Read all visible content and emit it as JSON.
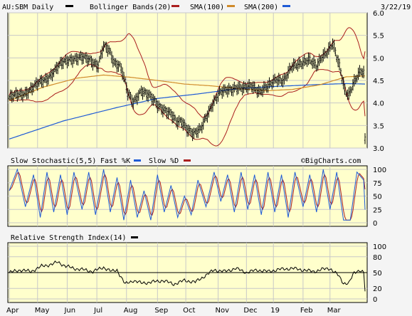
{
  "chart_data": [
    {
      "type": "line",
      "panel": "price",
      "ticker_label": "AU:SBM Daily",
      "date_label": "3/22/19",
      "legend": [
        {
          "label": "Bollinger Bands(20)",
          "color": "#000000"
        },
        {
          "label": "SMA(100)",
          "color": "#aa1e1e"
        },
        {
          "label": "SMA(200)",
          "color": "#d08a2a"
        },
        {
          "label": "",
          "color": "#1e5ad6"
        }
      ],
      "legend_last_label": "SMA(200)",
      "ylim": [
        3.0,
        6.0
      ],
      "yticks": [
        "6.0",
        "5.5",
        "5.0",
        "4.5",
        "4.0",
        "3.5",
        "3.0"
      ],
      "ytick_values": [
        6.0,
        5.5,
        5.0,
        4.5,
        4.0,
        3.5,
        3.0
      ],
      "x_months": [
        "Apr",
        "May",
        "Jun",
        "Jul",
        "Aug",
        "Sep",
        "Oct",
        "Nov",
        "Dec",
        "19",
        "Feb",
        "Mar"
      ],
      "close_series": {
        "name": "Price",
        "anchors": [
          [
            0,
            4.12
          ],
          [
            10,
            4.2
          ],
          [
            18,
            4.35
          ],
          [
            28,
            4.55
          ],
          [
            38,
            4.85
          ],
          [
            45,
            4.98
          ],
          [
            52,
            5.0
          ],
          [
            60,
            4.95
          ],
          [
            66,
            4.85
          ],
          [
            70,
            5.25
          ],
          [
            74,
            5.15
          ],
          [
            78,
            4.9
          ],
          [
            82,
            4.85
          ],
          [
            84,
            4.7
          ],
          [
            88,
            4.2
          ],
          [
            92,
            4.0
          ],
          [
            98,
            4.3
          ],
          [
            104,
            4.15
          ],
          [
            110,
            3.95
          ],
          [
            116,
            3.85
          ],
          [
            120,
            3.75
          ],
          [
            124,
            3.55
          ],
          [
            128,
            3.6
          ],
          [
            132,
            3.45
          ],
          [
            137,
            3.3
          ],
          [
            142,
            3.4
          ],
          [
            146,
            3.7
          ],
          [
            150,
            3.95
          ],
          [
            156,
            4.2
          ],
          [
            162,
            4.3
          ],
          [
            168,
            4.35
          ],
          [
            174,
            4.3
          ],
          [
            180,
            4.4
          ],
          [
            186,
            4.25
          ],
          [
            192,
            4.35
          ],
          [
            198,
            4.55
          ],
          [
            204,
            4.5
          ],
          [
            210,
            4.8
          ],
          [
            216,
            4.9
          ],
          [
            222,
            4.95
          ],
          [
            228,
            4.8
          ],
          [
            232,
            5.05
          ],
          [
            236,
            5.15
          ],
          [
            240,
            5.3
          ],
          [
            242,
            5.1
          ],
          [
            246,
            4.7
          ],
          [
            249,
            4.3
          ],
          [
            252,
            4.2
          ],
          [
            255,
            4.4
          ],
          [
            258,
            4.55
          ],
          [
            261,
            4.7
          ],
          [
            263,
            4.65
          ],
          [
            264,
            3.2
          ]
        ]
      },
      "sma100": {
        "anchors": [
          [
            0,
            4.05
          ],
          [
            25,
            4.35
          ],
          [
            50,
            4.55
          ],
          [
            70,
            4.62
          ],
          [
            90,
            4.57
          ],
          [
            110,
            4.5
          ],
          [
            130,
            4.42
          ],
          [
            150,
            4.38
          ],
          [
            170,
            4.32
          ],
          [
            190,
            4.27
          ],
          [
            210,
            4.3
          ],
          [
            230,
            4.4
          ],
          [
            250,
            4.58
          ],
          [
            264,
            4.6
          ]
        ]
      },
      "sma200": {
        "anchors": [
          [
            0,
            3.2
          ],
          [
            40,
            3.6
          ],
          [
            80,
            3.9
          ],
          [
            110,
            4.1
          ],
          [
            140,
            4.2
          ],
          [
            170,
            4.32
          ],
          [
            200,
            4.37
          ],
          [
            230,
            4.41
          ],
          [
            250,
            4.43
          ],
          [
            264,
            4.42
          ]
        ]
      }
    },
    {
      "type": "line",
      "panel": "stochastic",
      "title": "Slow Stochastic(5,5)",
      "watermark": "©BigCharts.com",
      "legend": [
        {
          "label": "Fast %K",
          "color": "#1e5ad6"
        },
        {
          "label": "Slow %D",
          "color": "#aa1e1e"
        }
      ],
      "ylim": [
        0,
        100
      ],
      "yticks": [
        "100",
        "75",
        "50",
        "25",
        "0"
      ],
      "ytick_values": [
        100,
        75,
        50,
        25,
        0
      ],
      "fast_k_peaks": [
        [
          0,
          60
        ],
        [
          6,
          100
        ],
        [
          12,
          30
        ],
        [
          18,
          90
        ],
        [
          23,
          10
        ],
        [
          28,
          95
        ],
        [
          33,
          20
        ],
        [
          38,
          90
        ],
        [
          43,
          15
        ],
        [
          48,
          95
        ],
        [
          54,
          25
        ],
        [
          59,
          95
        ],
        [
          64,
          15
        ],
        [
          70,
          100
        ],
        [
          75,
          20
        ],
        [
          80,
          85
        ],
        [
          85,
          5
        ],
        [
          90,
          80
        ],
        [
          95,
          10
        ],
        [
          100,
          60
        ],
        [
          105,
          5
        ],
        [
          110,
          90
        ],
        [
          115,
          20
        ],
        [
          120,
          70
        ],
        [
          125,
          10
        ],
        [
          130,
          50
        ],
        [
          135,
          15
        ],
        [
          140,
          80
        ],
        [
          146,
          30
        ],
        [
          152,
          95
        ],
        [
          157,
          40
        ],
        [
          162,
          90
        ],
        [
          167,
          20
        ],
        [
          172,
          95
        ],
        [
          177,
          25
        ],
        [
          182,
          90
        ],
        [
          187,
          15
        ],
        [
          192,
          95
        ],
        [
          197,
          20
        ],
        [
          202,
          90
        ],
        [
          207,
          10
        ],
        [
          212,
          95
        ],
        [
          218,
          30
        ],
        [
          223,
          90
        ],
        [
          228,
          20
        ],
        [
          233,
          100
        ],
        [
          238,
          25
        ],
        [
          243,
          95
        ],
        [
          248,
          5
        ],
        [
          253,
          5
        ],
        [
          258,
          95
        ],
        [
          263,
          80
        ],
        [
          264,
          25
        ]
      ]
    },
    {
      "type": "line",
      "panel": "rsi",
      "title": "Relative Strength Index(14)",
      "legend_color": "#000000",
      "ylim": [
        0,
        100
      ],
      "yticks": [
        "100",
        "80",
        "50",
        "20",
        "0"
      ],
      "ytick_values": [
        100,
        80,
        50,
        20,
        0
      ],
      "reference_line": 50,
      "anchors": [
        [
          0,
          50
        ],
        [
          8,
          55
        ],
        [
          16,
          52
        ],
        [
          24,
          62
        ],
        [
          32,
          66
        ],
        [
          36,
          70
        ],
        [
          42,
          62
        ],
        [
          48,
          58
        ],
        [
          56,
          55
        ],
        [
          62,
          52
        ],
        [
          70,
          60
        ],
        [
          76,
          52
        ],
        [
          80,
          55
        ],
        [
          86,
          28
        ],
        [
          92,
          35
        ],
        [
          98,
          30
        ],
        [
          106,
          32
        ],
        [
          114,
          35
        ],
        [
          122,
          28
        ],
        [
          130,
          35
        ],
        [
          138,
          32
        ],
        [
          146,
          45
        ],
        [
          152,
          55
        ],
        [
          160,
          52
        ],
        [
          168,
          58
        ],
        [
          176,
          50
        ],
        [
          184,
          55
        ],
        [
          192,
          52
        ],
        [
          200,
          56
        ],
        [
          210,
          58
        ],
        [
          218,
          55
        ],
        [
          226,
          52
        ],
        [
          232,
          56
        ],
        [
          238,
          58
        ],
        [
          244,
          45
        ],
        [
          248,
          30
        ],
        [
          252,
          30
        ],
        [
          256,
          50
        ],
        [
          260,
          55
        ],
        [
          263,
          50
        ],
        [
          264,
          15
        ]
      ]
    }
  ]
}
